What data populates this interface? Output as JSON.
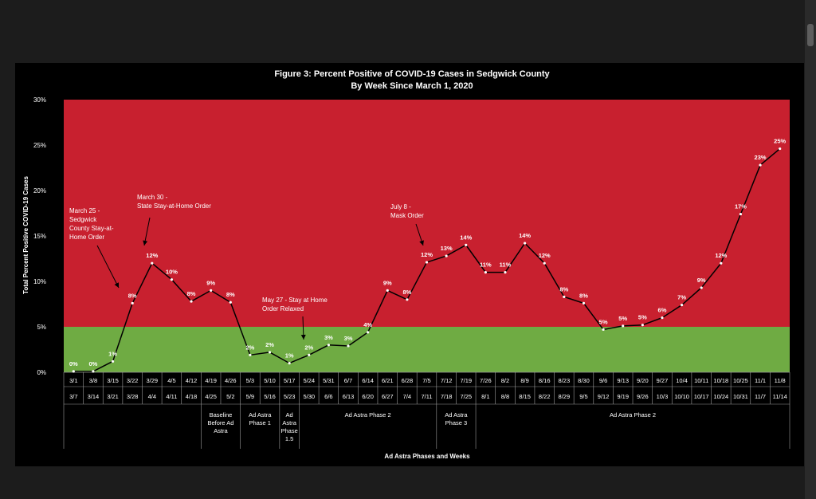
{
  "chart_data": {
    "type": "line",
    "title": "Figure 3: Percent Positive of COVID-19 Cases in Sedgwick County",
    "subtitle": "By Week Since March 1, 2020",
    "ylabel": "Total Percent Positive COVID-19 Cases",
    "xlabel": "Ad Astra Phases and Weeks",
    "ylim": [
      0,
      30
    ],
    "yticks": [
      "0%",
      "5%",
      "10%",
      "15%",
      "20%",
      "25%",
      "30%"
    ],
    "threshold": 5,
    "colors": {
      "high": "#c8202f",
      "low": "#6fab43",
      "line": "#000000",
      "point": "#ffffff"
    },
    "week_start": [
      "3/1",
      "3/8",
      "3/15",
      "3/22",
      "3/29",
      "4/5",
      "4/12",
      "4/19",
      "4/26",
      "5/3",
      "5/10",
      "5/17",
      "5/24",
      "5/31",
      "6/7",
      "6/14",
      "6/21",
      "6/28",
      "7/5",
      "7/12",
      "7/19",
      "7/26",
      "8/2",
      "8/9",
      "8/16",
      "8/23",
      "8/30",
      "9/6",
      "9/13",
      "9/20",
      "9/27",
      "10/4",
      "10/11",
      "10/18",
      "10/25",
      "11/1",
      "11/8"
    ],
    "week_end": [
      "3/7",
      "3/14",
      "3/21",
      "3/28",
      "4/4",
      "4/11",
      "4/18",
      "4/25",
      "5/2",
      "5/9",
      "5/16",
      "5/23",
      "5/30",
      "6/6",
      "6/13",
      "6/20",
      "6/27",
      "7/4",
      "7/11",
      "7/18",
      "7/25",
      "8/1",
      "8/8",
      "8/15",
      "8/22",
      "8/29",
      "9/5",
      "9/12",
      "9/19",
      "9/26",
      "10/3",
      "10/10",
      "10/17",
      "10/24",
      "10/31",
      "11/7",
      "11/14"
    ],
    "values": [
      0.1,
      0.1,
      1.2,
      7.6,
      12.0,
      10.2,
      7.8,
      9.0,
      7.7,
      1.9,
      2.2,
      1.0,
      1.9,
      3.0,
      2.9,
      4.4,
      9.0,
      8.0,
      12.1,
      12.8,
      14.0,
      11.0,
      11.0,
      14.2,
      12.0,
      8.3,
      7.6,
      4.7,
      5.1,
      5.2,
      6.0,
      7.4,
      9.3,
      12.0,
      17.4,
      22.8,
      24.6
    ],
    "data_labels": [
      "0%",
      "0%",
      "1%",
      "8%",
      "12%",
      "10%",
      "8%",
      "9%",
      "8%",
      "2%",
      "2%",
      "1%",
      "2%",
      "3%",
      "3%",
      "4%",
      "9%",
      "8%",
      "12%",
      "13%",
      "14%",
      "11%",
      "11%",
      "14%",
      "12%",
      "8%",
      "8%",
      "5%",
      "5%",
      "5%",
      "6%",
      "7%",
      "9%",
      "12%",
      "17%",
      "23%",
      "25%"
    ],
    "phases": [
      {
        "start": 7,
        "end": 8,
        "lines": [
          "Baseline",
          "Before Ad",
          "Astra"
        ]
      },
      {
        "start": 9,
        "end": 10,
        "lines": [
          "Ad Astra",
          "Phase 1"
        ]
      },
      {
        "start": 11,
        "end": 11,
        "lines": [
          "Ad",
          "Astra",
          "Phase",
          "1.5"
        ]
      },
      {
        "start": 12,
        "end": 18,
        "lines": [
          "Ad Astra Phase 2"
        ]
      },
      {
        "start": 19,
        "end": 20,
        "lines": [
          "Ad Astra",
          "Phase 3"
        ]
      },
      {
        "start": 21,
        "end": 36,
        "lines": [
          "Ad Astra Phase 2"
        ]
      }
    ],
    "annotations": [
      {
        "lines": [
          "March 25 -",
          "Sedgwick",
          "  County Stay-at-",
          "Home Order"
        ],
        "target": 3
      },
      {
        "lines": [
          "March 30 -",
          "State Stay-at-Home Order"
        ],
        "target": 4
      },
      {
        "lines": [
          "May 27 - Stay at Home",
          "Order Relaxed"
        ],
        "target": 12
      },
      {
        "lines": [
          "July 8 -",
          "Mask Order"
        ],
        "target": 18
      }
    ]
  }
}
